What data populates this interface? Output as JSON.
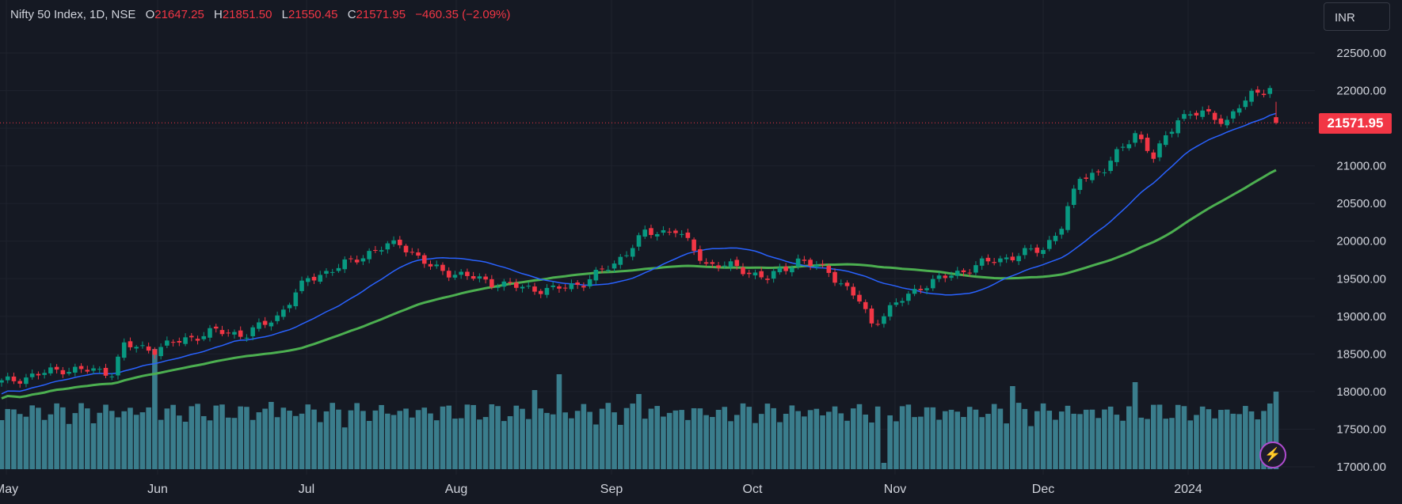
{
  "header": {
    "symbol": "Nifty 50 Index, 1D, NSE",
    "open_label": "O",
    "open": "21647.25",
    "high_label": "H",
    "high": "21851.50",
    "low_label": "L",
    "low": "21550.45",
    "close_label": "C",
    "close": "21571.95",
    "change": "−460.35 (−2.09%)"
  },
  "currency_button": "INR",
  "last_price_tag": "21571.95",
  "lightning_icon": "lightning-icon",
  "colors": {
    "background": "#151923",
    "up": "#089981",
    "down": "#f23645",
    "sma_fast": "#2962ff",
    "sma_slow": "#4caf50",
    "volume": "#3a7d8c",
    "grid": "#1e222d",
    "text": "#d1d4dc"
  },
  "chart_data": {
    "type": "candlestick",
    "y_ticks": [
      "22500.00",
      "22000.00",
      "21500.00",
      "21000.00",
      "20500.00",
      "20000.00",
      "19500.00",
      "19000.00",
      "18500.00",
      "18000.00",
      "17500.00",
      "17000.00"
    ],
    "ylim": [
      17000,
      22500
    ],
    "x_ticks": [
      "May",
      "Jun",
      "Jul",
      "Aug",
      "Sep",
      "Oct",
      "Nov",
      "Dec",
      "2024"
    ],
    "last_price": 21571.95,
    "grid": true,
    "series": [
      {
        "name": "Moving average (fast)",
        "color": "#2962ff"
      },
      {
        "name": "Moving average (slow)",
        "color": "#4caf50"
      },
      {
        "name": "Volume",
        "color": "#3a7d8c"
      }
    ]
  }
}
